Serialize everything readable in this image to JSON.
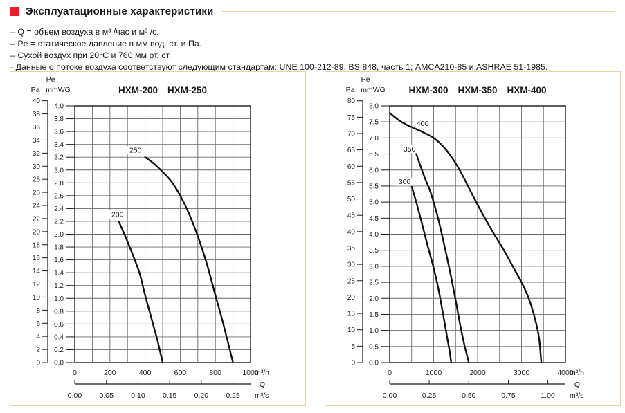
{
  "header": {
    "title": "Эксплуатационные характеристики"
  },
  "notes": [
    "– Q = объем воздуха в м³ /час и м³ /с.",
    "– Pe = статическое давление в мм вод. ст. и Па.",
    "– Сухой воздух при 20°C и 760 мм рт. ст.",
    "- Данные о потоке воздуха соответствуют следующим стандартам: UNE 100-212-89, BS 848, часть 1; AMCA210-85 и ASHRAE 51-1985."
  ],
  "colors": {
    "accent_red": "#e0232a",
    "header_rule": "#ead9a0",
    "box_border": "#e7d2a0",
    "grid": "#6b6b6b",
    "plot_border": "#1a1a1a",
    "curve": "#111111",
    "text": "#1b1b1b"
  },
  "chart_data": [
    {
      "type": "line",
      "models": [
        "HXM-200",
        "HXM-250"
      ],
      "x_axis": {
        "unit": "m³/h",
        "min": 0,
        "max": 1000,
        "major_ticks": [
          0,
          200,
          400,
          600,
          800,
          1000
        ],
        "minor_step": 100
      },
      "x2_axis": {
        "unit": "m³/s",
        "name": "Q",
        "ticks": [
          0.0,
          0.05,
          0.1,
          0.15,
          0.2,
          0.25
        ],
        "decimals": 2,
        "to_m3h_factor": 3600
      },
      "y_axis_mm": {
        "label": "mmWG",
        "header": "Pe",
        "min": 0,
        "max": 4.0,
        "step": 0.2,
        "decimals": 1
      },
      "y_axis_pa": {
        "label": "Pa",
        "min": 0,
        "max": 40,
        "step": 2,
        "pa_per_mmwg": 9.80665
      },
      "grid": true,
      "series": [
        {
          "name": "200",
          "label_at": [
            243,
            2.27
          ],
          "points": [
            [
              250,
              2.2
            ],
            [
              290,
              1.95
            ],
            [
              330,
              1.68
            ],
            [
              370,
              1.38
            ],
            [
              400,
              1.05
            ],
            [
              440,
              0.65
            ],
            [
              470,
              0.35
            ],
            [
              500,
              0
            ]
          ]
        },
        {
          "name": "250",
          "label_at": [
            345,
            3.27
          ],
          "points": [
            [
              400,
              3.2
            ],
            [
              450,
              3.1
            ],
            [
              500,
              2.97
            ],
            [
              550,
              2.82
            ],
            [
              600,
              2.6
            ],
            [
              650,
              2.32
            ],
            [
              700,
              1.97
            ],
            [
              750,
              1.55
            ],
            [
              800,
              1.05
            ],
            [
              850,
              0.55
            ],
            [
              900,
              0
            ]
          ]
        }
      ]
    },
    {
      "type": "line",
      "models": [
        "HXM-300",
        "HXM-350",
        "HXM-400"
      ],
      "x_axis": {
        "unit": "m³/h",
        "min": 0,
        "max": 4000,
        "major_ticks": [
          0,
          1000,
          2000,
          3000,
          4000
        ],
        "minor_step": 500
      },
      "x2_axis": {
        "unit": "m³/s",
        "name": "Q",
        "ticks": [
          0.0,
          0.25,
          0.5,
          0.75,
          1.0
        ],
        "decimals": 2,
        "to_m3h_factor": 3600
      },
      "y_axis_mm": {
        "label": "mmWG",
        "header": "Pe",
        "min": 0,
        "max": 8.0,
        "step": 0.5,
        "decimals": 1
      },
      "y_axis_pa": {
        "label": "Pa",
        "min": 0,
        "max": 80,
        "step": 5,
        "pa_per_mmwg": 9.80665
      },
      "grid": true,
      "series": [
        {
          "name": "300",
          "label_at": [
            340,
            5.56
          ],
          "points": [
            [
              500,
              5.5
            ],
            [
              620,
              4.92
            ],
            [
              740,
              4.3
            ],
            [
              860,
              3.66
            ],
            [
              990,
              3.0
            ],
            [
              1100,
              2.35
            ],
            [
              1200,
              1.62
            ],
            [
              1290,
              0.92
            ],
            [
              1360,
              0.38
            ],
            [
              1400,
              0
            ]
          ]
        },
        {
          "name": "350",
          "label_at": [
            452,
            6.58
          ],
          "points": [
            [
              605,
              6.5
            ],
            [
              700,
              6.13
            ],
            [
              800,
              5.75
            ],
            [
              900,
              5.42
            ],
            [
              1000,
              5.0
            ],
            [
              1100,
              4.5
            ],
            [
              1200,
              3.92
            ],
            [
              1300,
              3.3
            ],
            [
              1400,
              2.65
            ],
            [
              1500,
              1.95
            ],
            [
              1600,
              1.2
            ],
            [
              1700,
              0.55
            ],
            [
              1800,
              0
            ]
          ]
        },
        {
          "name": "400",
          "label_at": [
            748,
            7.38
          ],
          "points": [
            [
              0,
              7.78
            ],
            [
              200,
              7.56
            ],
            [
              400,
              7.4
            ],
            [
              600,
              7.28
            ],
            [
              800,
              7.15
            ],
            [
              1000,
              7.0
            ],
            [
              1200,
              6.76
            ],
            [
              1400,
              6.42
            ],
            [
              1600,
              5.98
            ],
            [
              1800,
              5.45
            ],
            [
              2000,
              4.92
            ],
            [
              2200,
              4.42
            ],
            [
              2400,
              3.95
            ],
            [
              2600,
              3.5
            ],
            [
              2800,
              3.0
            ],
            [
              3000,
              2.5
            ],
            [
              3150,
              2.05
            ],
            [
              3300,
              1.4
            ],
            [
              3400,
              0.75
            ],
            [
              3450,
              0
            ]
          ]
        }
      ]
    }
  ]
}
